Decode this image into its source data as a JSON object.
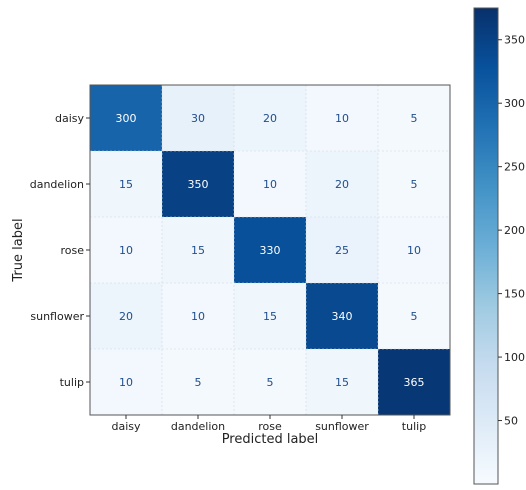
{
  "chart_data": {
    "type": "heatmap",
    "xlabel": "Predicted label",
    "ylabel": "True label",
    "x_categories": [
      "daisy",
      "dandelion",
      "rose",
      "sunflower",
      "tulip"
    ],
    "y_categories": [
      "daisy",
      "dandelion",
      "rose",
      "sunflower",
      "tulip"
    ],
    "matrix": [
      [
        300,
        30,
        20,
        10,
        5
      ],
      [
        15,
        350,
        10,
        20,
        5
      ],
      [
        10,
        15,
        330,
        25,
        10
      ],
      [
        20,
        10,
        15,
        340,
        5
      ],
      [
        10,
        5,
        5,
        15,
        365
      ]
    ],
    "colormap": "Blues",
    "color_range": [
      0,
      375
    ],
    "colorbar_ticks": [
      50,
      100,
      150,
      200,
      250,
      300,
      350
    ],
    "grid": true,
    "colors": {
      "cmap_low": "#f7fbff",
      "cmap_high": "#08306b",
      "text_light_bg": "#1f4e8c",
      "text_dark_bg": "#ffffff"
    }
  }
}
